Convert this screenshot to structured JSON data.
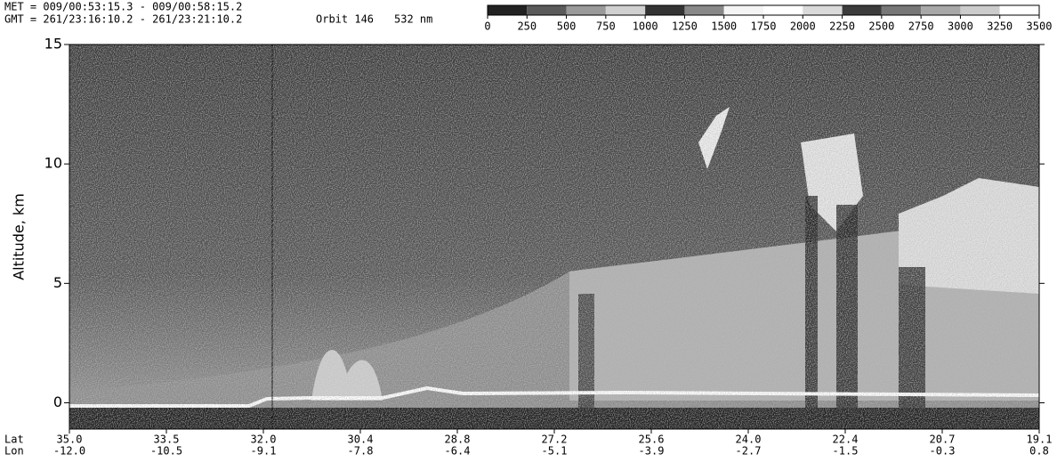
{
  "header": {
    "met": "MET = 009/00:53:15.3 - 009/00:58:15.2",
    "gmt": "GMT = 261/23:16:10.2 - 261/23:21:10.2",
    "orbit": "Orbit 146",
    "wavelength": "532 nm"
  },
  "chart_data": {
    "type": "image",
    "y_label": "Altitude, km",
    "ylim": [
      -1.1,
      15
    ],
    "yticks": [
      0,
      5,
      10,
      15
    ],
    "row_labels": [
      "Lat",
      "Lon"
    ],
    "lat": [
      "35.0",
      "33.5",
      "32.0",
      "30.4",
      "28.8",
      "27.2",
      "25.6",
      "24.0",
      "22.4",
      "20.7",
      "19.1"
    ],
    "lon": [
      "-12.0",
      "-10.5",
      "-9.1",
      "-7.8",
      "-6.4",
      "-5.1",
      "-3.9",
      "-2.7",
      "-1.5",
      "-0.3",
      "0.8"
    ],
    "colorbar": {
      "lim": [
        0,
        3500
      ],
      "ticks": [
        0,
        250,
        500,
        750,
        1000,
        1250,
        1500,
        1750,
        2000,
        2250,
        2500,
        2750,
        3000,
        3250,
        3500
      ],
      "colors": [
        "#222222",
        "#5a5a5a",
        "#9a9a9a",
        "#d0d0d0",
        "#333333",
        "#888888",
        "#f4f4f4",
        "#ffffff",
        "#dadada",
        "#3c3c3c",
        "#777777",
        "#a8a8a8",
        "#cccccc",
        "#ffffff"
      ]
    }
  }
}
